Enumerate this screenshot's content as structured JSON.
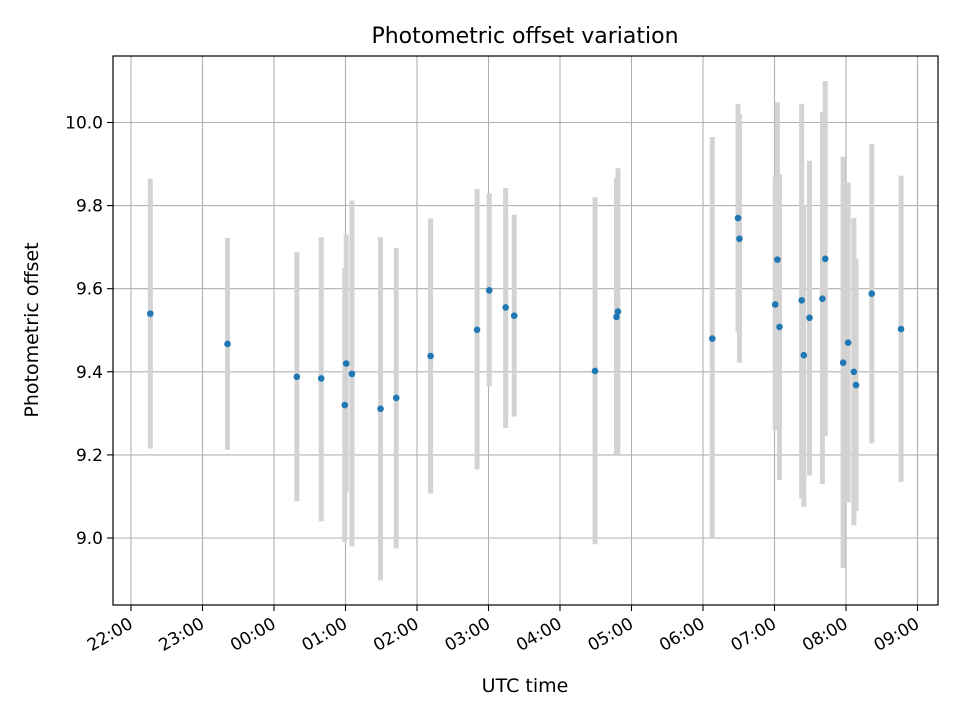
{
  "chart_data": {
    "type": "scatter",
    "title": "Photometric offset variation",
    "xlabel": "UTC time",
    "ylabel": "Photometric offset",
    "grid": true,
    "xlim": [
      -0.25,
      10.75
    ],
    "ylim": [
      8.84,
      10.16
    ],
    "x_ticks": [
      {
        "v": 0,
        "label": "22:00"
      },
      {
        "v": 1,
        "label": "23:00"
      },
      {
        "v": 2,
        "label": "00:00"
      },
      {
        "v": 3,
        "label": "01:00"
      },
      {
        "v": 4,
        "label": "02:00"
      },
      {
        "v": 5,
        "label": "03:00"
      },
      {
        "v": 6,
        "label": "04:00"
      },
      {
        "v": 7,
        "label": "05:00"
      },
      {
        "v": 8,
        "label": "06:00"
      },
      {
        "v": 9,
        "label": "07:00"
      },
      {
        "v": 10,
        "label": "08:00"
      },
      {
        "v": 11,
        "label": "09:00"
      }
    ],
    "y_ticks": [
      {
        "v": 9.0,
        "label": "9.0"
      },
      {
        "v": 9.2,
        "label": "9.2"
      },
      {
        "v": 9.4,
        "label": "9.4"
      },
      {
        "v": 9.6,
        "label": "9.6"
      },
      {
        "v": 9.8,
        "label": "9.8"
      },
      {
        "v": 10.0,
        "label": "10.0"
      }
    ],
    "marker_color": "#1f77b4",
    "errorbar_color": "#d3d3d3",
    "points": [
      {
        "x": 0.27,
        "y": 9.54,
        "lo": 9.215,
        "hi": 9.865
      },
      {
        "x": 1.35,
        "y": 9.467,
        "lo": 9.212,
        "hi": 9.722
      },
      {
        "x": 2.32,
        "y": 9.388,
        "lo": 9.088,
        "hi": 9.688
      },
      {
        "x": 2.66,
        "y": 9.384,
        "lo": 9.04,
        "hi": 9.724
      },
      {
        "x": 2.99,
        "y": 9.32,
        "lo": 8.99,
        "hi": 9.65
      },
      {
        "x": 3.01,
        "y": 9.42,
        "lo": 9.11,
        "hi": 9.73
      },
      {
        "x": 3.09,
        "y": 9.395,
        "lo": 8.98,
        "hi": 9.812
      },
      {
        "x": 3.49,
        "y": 9.311,
        "lo": 8.898,
        "hi": 9.724
      },
      {
        "x": 3.71,
        "y": 9.337,
        "lo": 8.975,
        "hi": 9.698
      },
      {
        "x": 4.19,
        "y": 9.438,
        "lo": 9.107,
        "hi": 9.769
      },
      {
        "x": 4.84,
        "y": 9.501,
        "lo": 9.165,
        "hi": 9.84
      },
      {
        "x": 5.01,
        "y": 9.596,
        "lo": 9.365,
        "hi": 9.83
      },
      {
        "x": 5.24,
        "y": 9.555,
        "lo": 9.265,
        "hi": 9.842
      },
      {
        "x": 5.36,
        "y": 9.535,
        "lo": 9.292,
        "hi": 9.778
      },
      {
        "x": 6.49,
        "y": 9.402,
        "lo": 8.985,
        "hi": 9.82
      },
      {
        "x": 6.79,
        "y": 9.532,
        "lo": 9.2,
        "hi": 9.866
      },
      {
        "x": 6.81,
        "y": 9.545,
        "lo": 9.2,
        "hi": 9.89
      },
      {
        "x": 8.13,
        "y": 9.48,
        "lo": 9.0,
        "hi": 9.965
      },
      {
        "x": 8.49,
        "y": 9.77,
        "lo": 9.495,
        "hi": 10.045
      },
      {
        "x": 8.51,
        "y": 9.72,
        "lo": 9.422,
        "hi": 10.02
      },
      {
        "x": 9.01,
        "y": 9.562,
        "lo": 9.26,
        "hi": 9.87
      },
      {
        "x": 9.04,
        "y": 9.67,
        "lo": 9.29,
        "hi": 10.048
      },
      {
        "x": 9.07,
        "y": 9.508,
        "lo": 9.14,
        "hi": 9.875
      },
      {
        "x": 9.38,
        "y": 9.572,
        "lo": 9.095,
        "hi": 10.045
      },
      {
        "x": 9.41,
        "y": 9.44,
        "lo": 9.075,
        "hi": 9.8
      },
      {
        "x": 9.49,
        "y": 9.53,
        "lo": 9.15,
        "hi": 9.908
      },
      {
        "x": 9.67,
        "y": 9.576,
        "lo": 9.13,
        "hi": 10.025
      },
      {
        "x": 9.71,
        "y": 9.672,
        "lo": 9.245,
        "hi": 10.1
      },
      {
        "x": 9.96,
        "y": 9.422,
        "lo": 8.928,
        "hi": 9.918
      },
      {
        "x": 10.03,
        "y": 9.47,
        "lo": 9.085,
        "hi": 9.855
      },
      {
        "x": 10.11,
        "y": 9.4,
        "lo": 9.03,
        "hi": 9.77
      },
      {
        "x": 10.14,
        "y": 9.368,
        "lo": 9.065,
        "hi": 9.673
      },
      {
        "x": 10.36,
        "y": 9.588,
        "lo": 9.228,
        "hi": 9.948
      },
      {
        "x": 10.77,
        "y": 9.503,
        "lo": 9.135,
        "hi": 9.872
      }
    ]
  }
}
